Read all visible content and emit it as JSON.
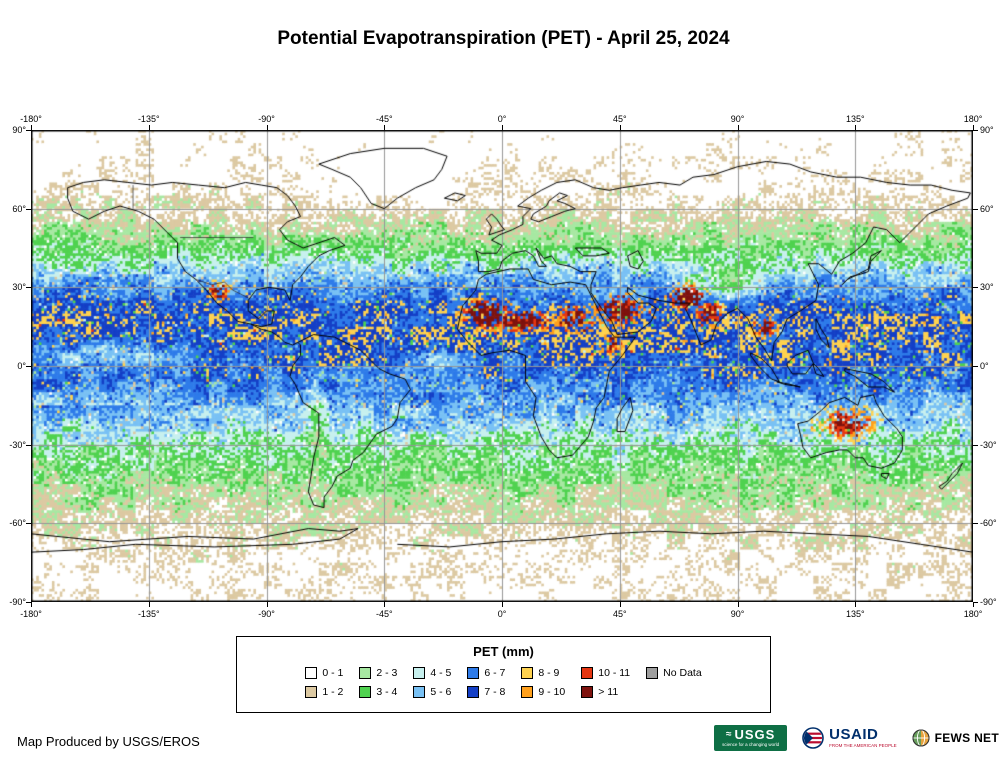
{
  "title": "Potential Evapotranspiration (PET) - April 25, 2024",
  "map": {
    "lon_ticks": [
      "-180°",
      "-135°",
      "-90°",
      "-45°",
      "0°",
      "45°",
      "90°",
      "135°",
      "180°"
    ],
    "lat_ticks": [
      "90°",
      "60°",
      "30°",
      "0°",
      "-30°",
      "-60°",
      "-90°"
    ]
  },
  "legend": {
    "title": "PET (mm)",
    "items": [
      {
        "label": "0 - 1",
        "color": "#FFFFFF"
      },
      {
        "label": "1 - 2",
        "color": "#DCC9A2"
      },
      {
        "label": "2 - 3",
        "color": "#A7E8A2"
      },
      {
        "label": "3 - 4",
        "color": "#4FD24F"
      },
      {
        "label": "4 - 5",
        "color": "#C7F0EE"
      },
      {
        "label": "5 - 6",
        "color": "#79C1F4"
      },
      {
        "label": "6 - 7",
        "color": "#2E7BE9"
      },
      {
        "label": "7 - 8",
        "color": "#143FC6"
      },
      {
        "label": "8 - 9",
        "color": "#FFD24F"
      },
      {
        "label": "9 - 10",
        "color": "#FFA01C"
      },
      {
        "label": "10 - 11",
        "color": "#E63611"
      },
      {
        "label": "> 11",
        "color": "#7E120E"
      },
      {
        "label": "No Data",
        "color": "#9E9E9E"
      }
    ]
  },
  "footer": {
    "credit": "Map Produced by USGS/EROS"
  },
  "logos": {
    "usgs": {
      "name": "USGS",
      "tagline": "science for a changing world"
    },
    "usaid": {
      "name": "USAID",
      "tagline": "FROM THE AMERICAN PEOPLE"
    },
    "fewsnet": {
      "name": "FEWS NET"
    }
  }
}
